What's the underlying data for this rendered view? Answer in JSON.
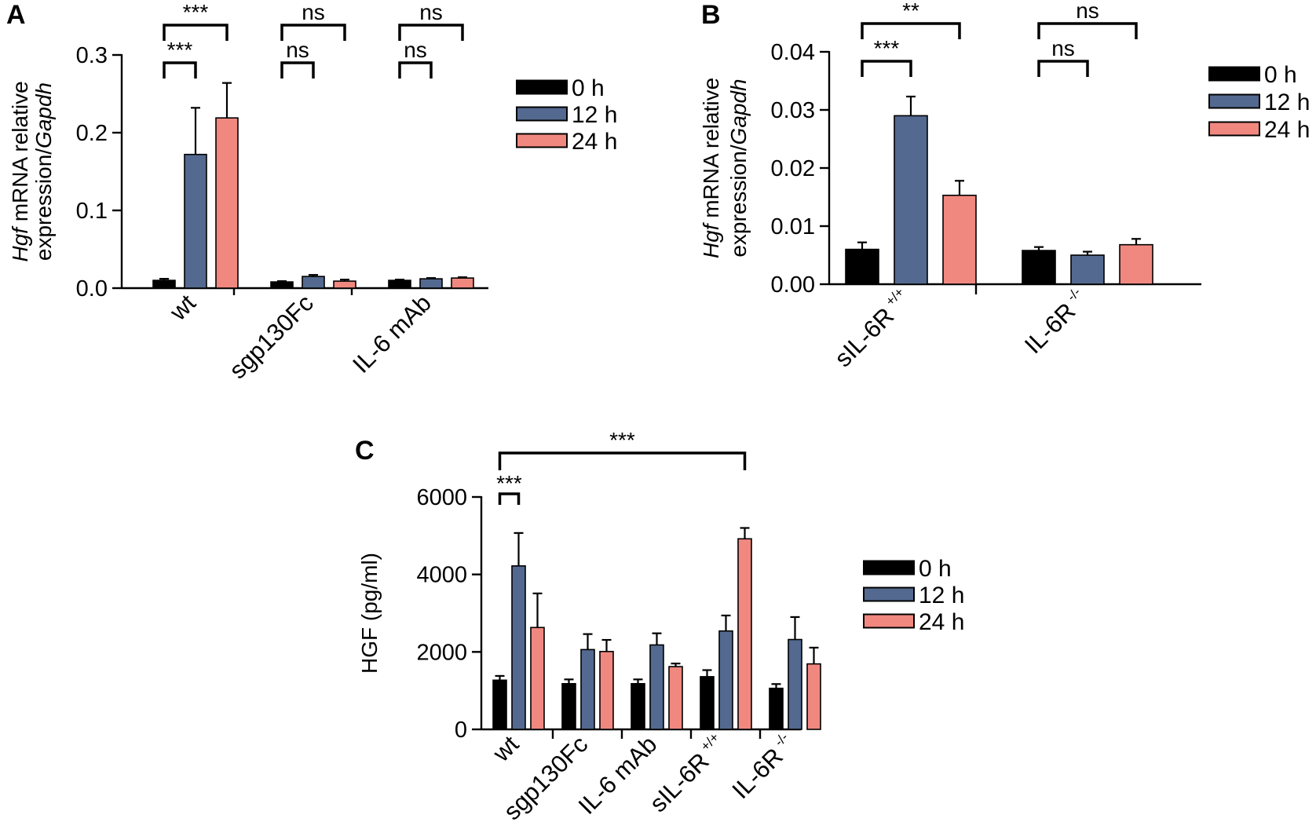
{
  "chart_data": [
    {
      "panel": "A",
      "type": "bar",
      "ylabel_italic": "Hgf",
      "ylabel_rest": " mRNA relative",
      "ylabel_line2_plain": "expression/",
      "ylabel_line2_italic": "Gapdh",
      "ylim": [
        0,
        0.3
      ],
      "yticks": [
        "0.0",
        "0.1",
        "0.2",
        "0.3"
      ],
      "categories": [
        {
          "name": "wt",
          "sup": ""
        },
        {
          "name": "sgp130Fc",
          "sup": ""
        },
        {
          "name": "IL-6 mAb",
          "sup": ""
        }
      ],
      "series": [
        {
          "name": "0 h",
          "color": "#000000",
          "values": [
            0.01,
            0.008,
            0.01
          ],
          "errors": [
            0.002,
            0.001,
            0.001
          ]
        },
        {
          "name": "12 h",
          "color": "#53698f",
          "values": [
            0.172,
            0.015,
            0.012
          ],
          "errors": [
            0.06,
            0.002,
            0.001
          ]
        },
        {
          "name": "24 h",
          "color": "#f08880",
          "values": [
            0.219,
            0.009,
            0.013
          ],
          "errors": [
            0.045,
            0.002,
            0.001
          ]
        }
      ],
      "annotations": [
        {
          "label": "***",
          "cat": 0,
          "from": 0,
          "to": 1,
          "level": 1
        },
        {
          "label": "***",
          "cat": 0,
          "from": 0,
          "to": 2,
          "level": 2
        },
        {
          "label": "ns",
          "cat": 1,
          "from": 0,
          "to": 1,
          "level": 1
        },
        {
          "label": "ns",
          "cat": 1,
          "from": 0,
          "to": 2,
          "level": 2
        },
        {
          "label": "ns",
          "cat": 2,
          "from": 0,
          "to": 1,
          "level": 1
        },
        {
          "label": "ns",
          "cat": 2,
          "from": 0,
          "to": 2,
          "level": 2
        }
      ],
      "legend": [
        "0 h",
        "12 h",
        "24 h"
      ]
    },
    {
      "panel": "B",
      "type": "bar",
      "ylabel_italic": "Hgf",
      "ylabel_rest": " mRNA relative",
      "ylabel_line2_plain": "expression/",
      "ylabel_line2_italic": "Gapdh",
      "ylim": [
        0,
        0.04
      ],
      "yticks": [
        "0.00",
        "0.01",
        "0.02",
        "0.03",
        "0.04"
      ],
      "categories": [
        {
          "name": "sIL-6R",
          "sup": "+/+"
        },
        {
          "name": "IL-6R",
          "sup": "-/-"
        }
      ],
      "series": [
        {
          "name": "0 h",
          "color": "#000000",
          "values": [
            0.006,
            0.0058
          ],
          "errors": [
            0.0012,
            0.0006
          ]
        },
        {
          "name": "12 h",
          "color": "#53698f",
          "values": [
            0.029,
            0.005
          ],
          "errors": [
            0.0033,
            0.0006
          ]
        },
        {
          "name": "24 h",
          "color": "#f08880",
          "values": [
            0.0153,
            0.0068
          ],
          "errors": [
            0.0025,
            0.001
          ]
        }
      ],
      "annotations": [
        {
          "label": "***",
          "cat": 0,
          "from": 0,
          "to": 1,
          "level": 1
        },
        {
          "label": "**",
          "cat": 0,
          "from": 0,
          "to": 2,
          "level": 2
        },
        {
          "label": "ns",
          "cat": 1,
          "from": 0,
          "to": 1,
          "level": 1
        },
        {
          "label": "ns",
          "cat": 1,
          "from": 0,
          "to": 2,
          "level": 2
        }
      ],
      "legend": [
        "0 h",
        "12 h",
        "24 h"
      ]
    },
    {
      "panel": "C",
      "type": "bar",
      "ylabel": "HGF (pg/ml)",
      "ylim": [
        0,
        6000
      ],
      "yticks": [
        "0",
        "2000",
        "4000",
        "6000"
      ],
      "categories": [
        {
          "name": "wt",
          "sup": ""
        },
        {
          "name": "sgp130Fc",
          "sup": ""
        },
        {
          "name": "IL-6 mAb",
          "sup": ""
        },
        {
          "name": "sIL-6R",
          "sup": "+/+"
        },
        {
          "name": "IL-6R",
          "sup": "-/-"
        }
      ],
      "series": [
        {
          "name": "0 h",
          "color": "#000000",
          "values": [
            1270,
            1180,
            1180,
            1360,
            1060
          ],
          "errors": [
            110,
            110,
            110,
            170,
            110
          ]
        },
        {
          "name": "12 h",
          "color": "#53698f",
          "values": [
            4220,
            2060,
            2180,
            2540,
            2320
          ],
          "errors": [
            850,
            400,
            300,
            400,
            580
          ]
        },
        {
          "name": "24 h",
          "color": "#f08880",
          "values": [
            2630,
            2010,
            1620,
            4920,
            1690
          ],
          "errors": [
            880,
            300,
            80,
            280,
            420
          ]
        }
      ],
      "annotations": [
        {
          "label": "***",
          "type": "local",
          "cat": 0,
          "from": 0,
          "to": 1
        },
        {
          "label": "***",
          "type": "long",
          "fromCat": 0,
          "fromBar": 0,
          "toCat": 3,
          "toBar": 2
        }
      ],
      "legend": [
        "0 h",
        "12 h",
        "24 h"
      ]
    }
  ]
}
